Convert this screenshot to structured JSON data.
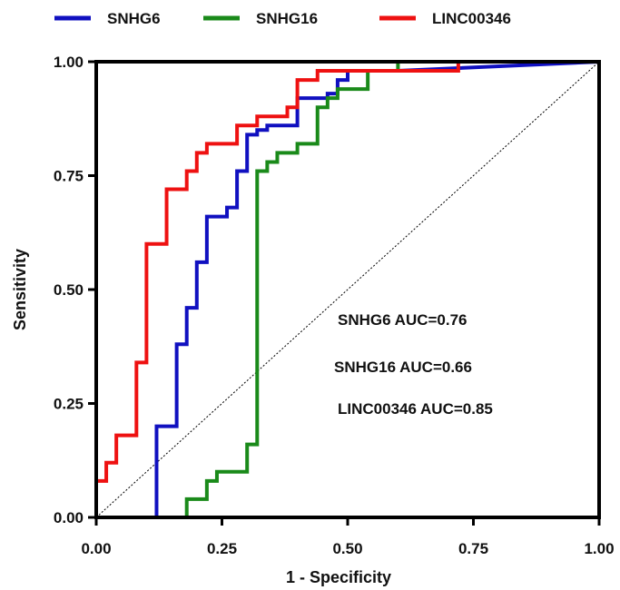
{
  "chart_data": {
    "type": "line",
    "title": "",
    "xlabel": "1 - Specificity",
    "ylabel": "Sensitivity",
    "xlim": [
      0,
      1
    ],
    "ylim": [
      0,
      1
    ],
    "x_ticks": [
      "0.00",
      "0.25",
      "0.50",
      "0.75",
      "1.00"
    ],
    "y_ticks": [
      "0.00",
      "0.25",
      "0.50",
      "0.75",
      "1.00"
    ],
    "legend_position": "top",
    "reference_line": "diagonal dashed",
    "series": [
      {
        "name": "SNHG6",
        "color": "#1010c0",
        "x": [
          0,
          0.12,
          0.12,
          0.16,
          0.16,
          0.18,
          0.18,
          0.2,
          0.2,
          0.22,
          0.22,
          0.26,
          0.26,
          0.28,
          0.28,
          0.3,
          0.3,
          0.32,
          0.32,
          0.34,
          0.34,
          0.4,
          0.4,
          0.46,
          0.46,
          0.48,
          0.48,
          0.5,
          0.5,
          0.6,
          1.0
        ],
        "y": [
          0,
          0,
          0.2,
          0.2,
          0.38,
          0.38,
          0.46,
          0.46,
          0.56,
          0.56,
          0.66,
          0.66,
          0.68,
          0.68,
          0.76,
          0.76,
          0.84,
          0.84,
          0.85,
          0.85,
          0.86,
          0.86,
          0.92,
          0.92,
          0.93,
          0.93,
          0.96,
          0.96,
          0.98,
          0.98,
          1.0
        ]
      },
      {
        "name": "SNHG16",
        "color": "#1a8a1a",
        "x": [
          0,
          0.18,
          0.18,
          0.22,
          0.22,
          0.24,
          0.24,
          0.3,
          0.3,
          0.32,
          0.32,
          0.34,
          0.34,
          0.36,
          0.36,
          0.4,
          0.4,
          0.44,
          0.44,
          0.46,
          0.46,
          0.48,
          0.48,
          0.54,
          0.54,
          0.6,
          0.6,
          1.0
        ],
        "y": [
          0,
          0,
          0.04,
          0.04,
          0.08,
          0.08,
          0.1,
          0.1,
          0.16,
          0.16,
          0.76,
          0.76,
          0.78,
          0.78,
          0.8,
          0.8,
          0.82,
          0.82,
          0.9,
          0.9,
          0.92,
          0.92,
          0.94,
          0.94,
          0.98,
          0.98,
          1.0,
          1.0
        ]
      },
      {
        "name": "LINC00346",
        "color": "#ee1111",
        "x": [
          0,
          0,
          0.02,
          0.02,
          0.04,
          0.04,
          0.08,
          0.08,
          0.1,
          0.1,
          0.14,
          0.14,
          0.18,
          0.18,
          0.2,
          0.2,
          0.22,
          0.22,
          0.28,
          0.28,
          0.32,
          0.32,
          0.38,
          0.38,
          0.4,
          0.4,
          0.44,
          0.44,
          0.72,
          0.72,
          1.0
        ],
        "y": [
          0,
          0.08,
          0.08,
          0.12,
          0.12,
          0.18,
          0.18,
          0.34,
          0.34,
          0.6,
          0.6,
          0.72,
          0.72,
          0.76,
          0.76,
          0.8,
          0.8,
          0.82,
          0.82,
          0.86,
          0.86,
          0.88,
          0.88,
          0.9,
          0.9,
          0.96,
          0.96,
          0.98,
          0.98,
          1.0,
          1.0
        ]
      }
    ],
    "annotations": [
      "SNHG6 AUC=0.76",
      "SNHG16 AUC=0.66",
      "LINC00346 AUC=0.85"
    ]
  }
}
